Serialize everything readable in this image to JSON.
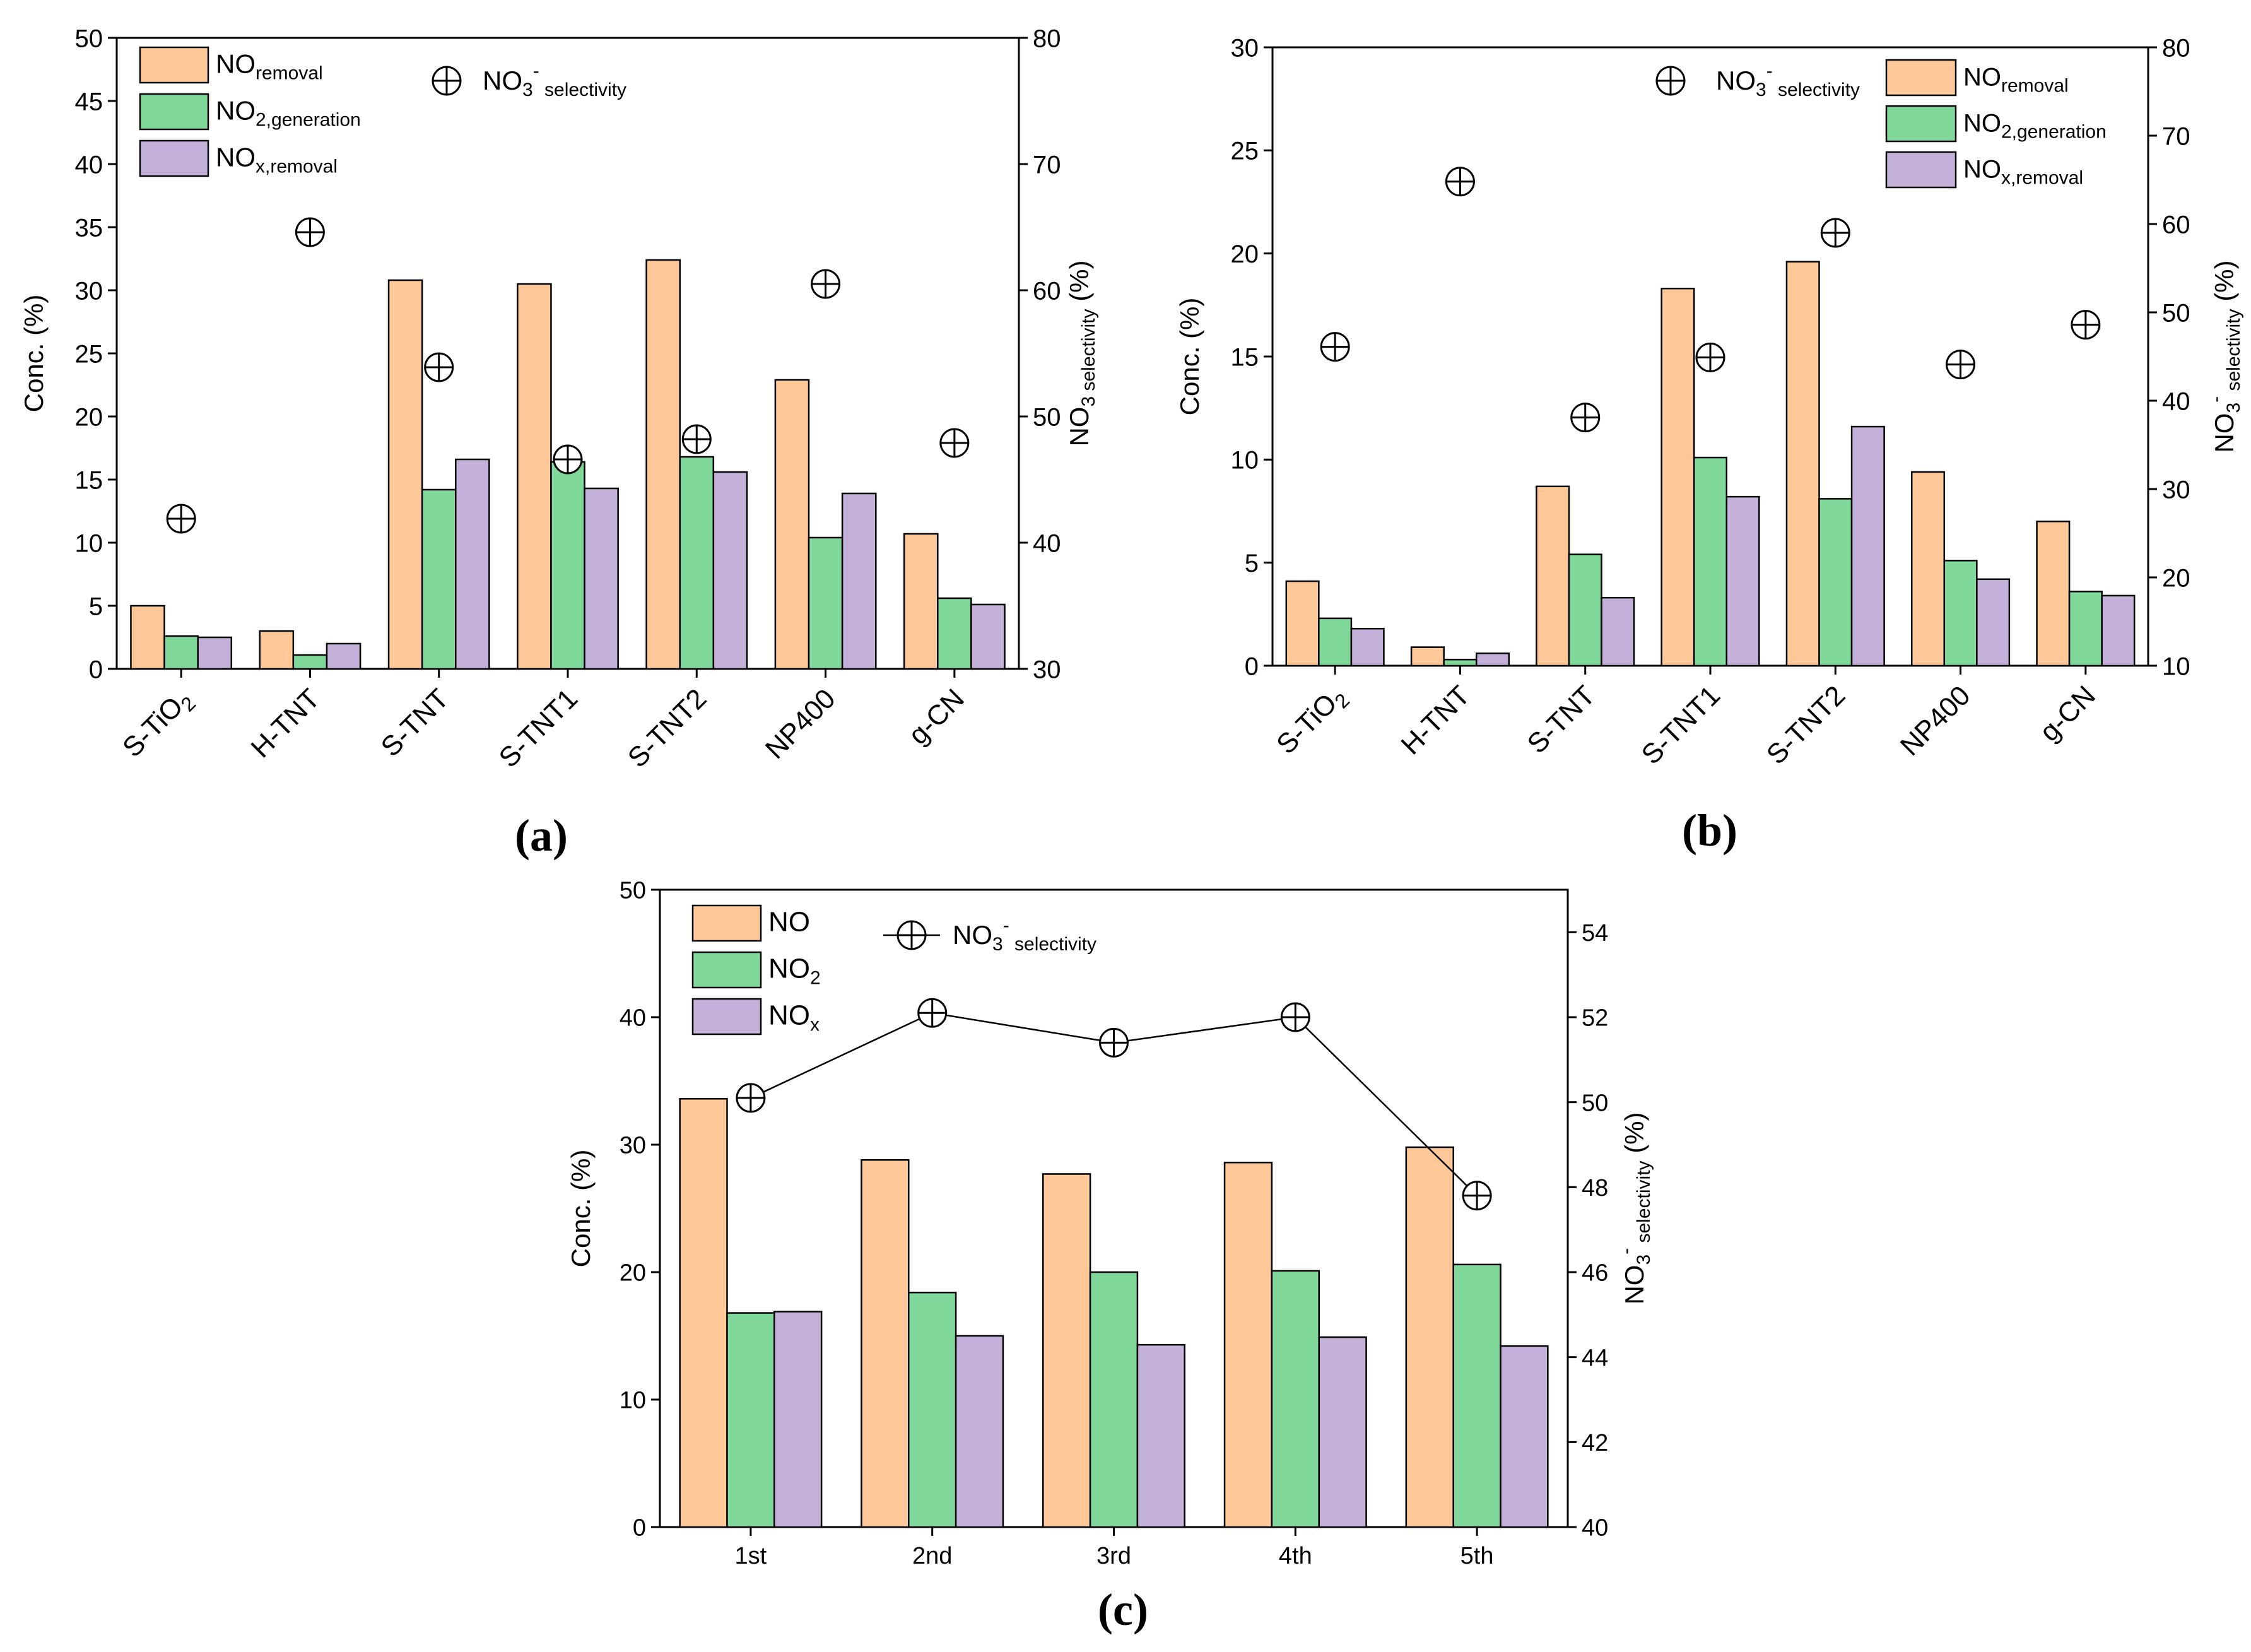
{
  "colors": {
    "series1": "#fec898",
    "series2": "#80d99b",
    "series3": "#c4b1d9",
    "stroke": "#000000"
  },
  "chart_data": [
    {
      "type": "bar",
      "panel_label": "(a)",
      "categories": [
        "S-TiO2",
        "H-TNT",
        "S-TNT",
        "S-TNT1",
        "S-TNT2",
        "NP400",
        "g-CN"
      ],
      "category_parts": [
        [
          "S-TiO",
          "2"
        ],
        [
          "H-TNT",
          ""
        ],
        [
          "S-TNT",
          ""
        ],
        [
          "S-TNT1",
          ""
        ],
        [
          "S-TNT2",
          ""
        ],
        [
          "NP400",
          ""
        ],
        [
          "g-CN",
          ""
        ]
      ],
      "ylabel": "Conc. (%)",
      "ylim": [
        0,
        50
      ],
      "yticks": [
        0,
        5,
        10,
        15,
        20,
        25,
        30,
        35,
        40,
        45,
        50
      ],
      "y2label": "NO3 selectivity (%)",
      "y2lim": [
        30,
        80
      ],
      "y2ticks": [
        30,
        40,
        50,
        60,
        70,
        80
      ],
      "series": [
        {
          "name": "NOremoval",
          "name_main": "NO",
          "name_sub": "removal",
          "values": [
            5.0,
            3.0,
            30.8,
            30.5,
            32.4,
            22.9,
            10.7
          ]
        },
        {
          "name": "NO2,generation",
          "name_main": "NO",
          "name_sub": "2,generation",
          "values": [
            2.6,
            1.1,
            14.2,
            16.4,
            16.8,
            10.4,
            5.6
          ]
        },
        {
          "name": "NOx,removal",
          "name_main": "NO",
          "name_sub": "x,removal",
          "values": [
            2.5,
            2.0,
            16.6,
            14.3,
            15.6,
            13.9,
            5.1
          ]
        }
      ],
      "selectivity": {
        "name": "NO3-selectivity",
        "name_main": "NO",
        "name_sub": "3",
        "name_sup": "-",
        "name_sub2": "selectivity",
        "values": [
          41.9,
          64.6,
          53.9,
          46.6,
          48.2,
          60.5,
          47.9
        ],
        "line": false
      }
    },
    {
      "type": "bar",
      "panel_label": "(b)",
      "categories": [
        "S-TiO2",
        "H-TNT",
        "S-TNT",
        "S-TNT1",
        "S-TNT2",
        "NP400",
        "g-CN"
      ],
      "category_parts": [
        [
          "S-TiO",
          "2"
        ],
        [
          "H-TNT",
          ""
        ],
        [
          "S-TNT",
          ""
        ],
        [
          "S-TNT1",
          ""
        ],
        [
          "S-TNT2",
          ""
        ],
        [
          "NP400",
          ""
        ],
        [
          "g-CN",
          ""
        ]
      ],
      "ylabel": "Conc. (%)",
      "ylim": [
        0,
        30
      ],
      "yticks": [
        0,
        5,
        10,
        15,
        20,
        25,
        30
      ],
      "y2label": "NO3- selectivity (%)",
      "y2lim": [
        10,
        80
      ],
      "y2ticks": [
        10,
        20,
        30,
        40,
        50,
        60,
        70,
        80
      ],
      "series": [
        {
          "name": "NOremoval",
          "name_main": "NO",
          "name_sub": "removal",
          "values": [
            4.1,
            0.9,
            8.7,
            18.3,
            19.6,
            9.4,
            7.0
          ]
        },
        {
          "name": "NO2,generation",
          "name_main": "NO",
          "name_sub": "2,generation",
          "values": [
            2.3,
            0.3,
            5.4,
            10.1,
            8.1,
            5.1,
            3.6
          ]
        },
        {
          "name": "NOx,removal",
          "name_main": "NO",
          "name_sub": "x,removal",
          "values": [
            1.8,
            0.6,
            3.3,
            8.2,
            11.6,
            4.2,
            3.4
          ]
        }
      ],
      "selectivity": {
        "name": "NO3-selectivity",
        "name_main": "NO",
        "name_sub": "3",
        "name_sup": "-",
        "name_sub2": "selectivity",
        "values": [
          46.1,
          64.8,
          38.1,
          44.9,
          59.0,
          44.1,
          48.6
        ],
        "line": false
      }
    },
    {
      "type": "bar",
      "panel_label": "(c)",
      "categories": [
        "1st",
        "2nd",
        "3rd",
        "4th",
        "5th"
      ],
      "category_parts": [
        [
          "1st",
          ""
        ],
        [
          "2nd",
          ""
        ],
        [
          "3rd",
          ""
        ],
        [
          "4th",
          ""
        ],
        [
          "5th",
          ""
        ]
      ],
      "ylabel": "Conc. (%)",
      "ylim": [
        0,
        50
      ],
      "yticks": [
        0,
        10,
        20,
        30,
        40,
        50
      ],
      "y2label": "NO3- selectivity(%)",
      "y2lim": [
        40,
        55
      ],
      "y2ticks": [
        40,
        42,
        44,
        46,
        48,
        50,
        52,
        54
      ],
      "series": [
        {
          "name": "NO",
          "name_main": "NO",
          "name_sub": "",
          "values": [
            33.6,
            28.8,
            27.7,
            28.6,
            29.8
          ]
        },
        {
          "name": "NO2",
          "name_main": "NO",
          "name_sub": "2",
          "values": [
            16.8,
            18.4,
            20.0,
            20.1,
            20.6
          ]
        },
        {
          "name": "NOx",
          "name_main": "NO",
          "name_sub": "x",
          "values": [
            16.9,
            15.0,
            14.3,
            14.9,
            14.2
          ]
        }
      ],
      "selectivity": {
        "name": "NO3-selectivity",
        "name_main": "NO",
        "name_sub": "3",
        "name_sup": "-",
        "name_sub2": "selectivity",
        "values": [
          50.1,
          52.1,
          51.4,
          52.0,
          47.8
        ],
        "line": true
      }
    }
  ]
}
